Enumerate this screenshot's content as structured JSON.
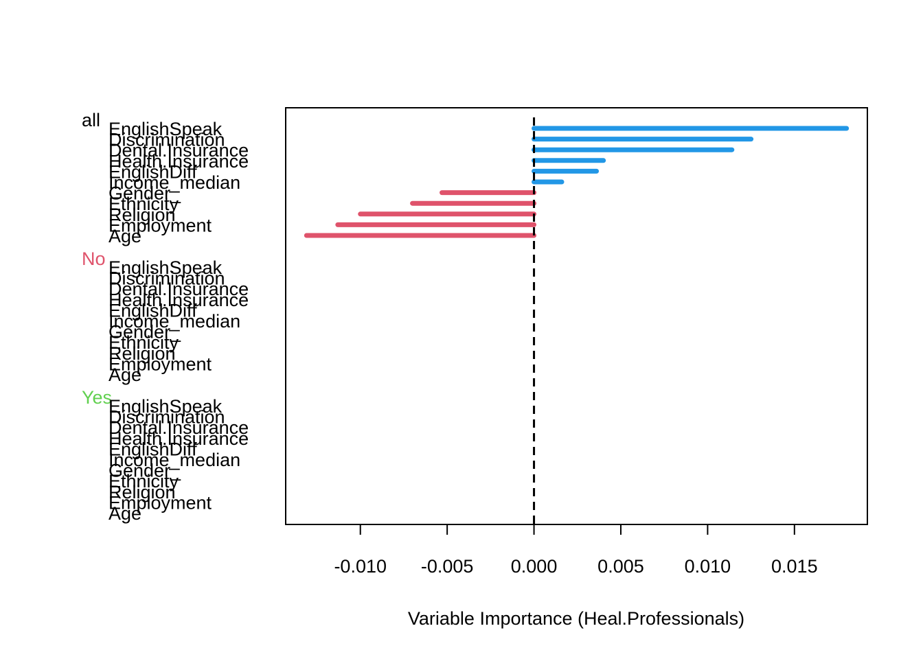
{
  "chart_data": {
    "type": "bar",
    "orientation": "horizontal",
    "xlabel": "Variable Importance (Heal.Professionals)",
    "xlim": [
      -0.0143,
      0.0192
    ],
    "xticks": [
      "-0.010",
      "-0.005",
      "0.000",
      "0.005",
      "0.010",
      "0.015"
    ],
    "xtick_values": [
      -0.01,
      -0.005,
      0.0,
      0.005,
      0.01,
      0.015
    ],
    "reference_line": 0,
    "grid": false,
    "colors": {
      "positive": "#2297E6",
      "negative": "#DF536B",
      "group_all": "#000000",
      "group_no": "#DF536B",
      "group_yes": "#61D04F"
    },
    "groups": [
      {
        "name": "all",
        "variables": [
          "EnglishSpeak",
          "Discrimination",
          "Dental.Insurance",
          "Health.Insurance",
          "EnglishDiff",
          "Income_median",
          "Gender_",
          "Ethnicity",
          "Religion",
          "Employment",
          "Age"
        ],
        "values": [
          0.018,
          0.0125,
          0.0114,
          0.004,
          0.0036,
          0.0016,
          -0.0053,
          -0.007,
          -0.01,
          -0.0113,
          -0.0131
        ]
      },
      {
        "name": "No",
        "variables": [
          "EnglishSpeak",
          "Discrimination",
          "Dental.Insurance",
          "Health.Insurance",
          "EnglishDiff",
          "Income_median",
          "Gender_",
          "Ethnicity",
          "Religion",
          "Employment",
          "Age"
        ],
        "values": [
          0,
          0,
          0,
          0,
          0,
          0,
          0,
          0,
          0,
          0,
          0
        ]
      },
      {
        "name": "Yes",
        "variables": [
          "EnglishSpeak",
          "Discrimination",
          "Dental.Insurance",
          "Health.Insurance",
          "EnglishDiff",
          "Income_median",
          "Gender_",
          "Ethnicity",
          "Religion",
          "Employment",
          "Age"
        ],
        "values": [
          0,
          0,
          0,
          0,
          0,
          0,
          0,
          0,
          0,
          0,
          0
        ]
      }
    ]
  }
}
